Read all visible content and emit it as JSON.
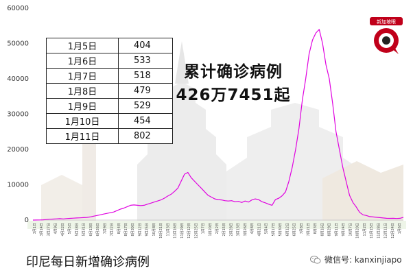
{
  "headline": {
    "line1": "累计确诊病例",
    "line2": "426万7451起"
  },
  "caption": "印尼每日新增确诊病例",
  "wechat": {
    "label": "微信号: kanxinjiapo",
    "icon": "wechat-icon"
  },
  "logo": {
    "text": "新加坡眼",
    "icon": "camera-eye-logo-icon"
  },
  "table": {
    "rows": [
      {
        "date": "1月5日",
        "value": "404"
      },
      {
        "date": "1月6日",
        "value": "533"
      },
      {
        "date": "1月7日",
        "value": "518"
      },
      {
        "date": "1月8日",
        "value": "479"
      },
      {
        "date": "1月9日",
        "value": "529"
      },
      {
        "date": "1月10日",
        "value": "454"
      },
      {
        "date": "1月11日",
        "value": "802"
      }
    ]
  },
  "colors": {
    "line": "#e000e0",
    "axis": "#cccccc",
    "background_art": "#e8e8e8"
  },
  "chart_data": {
    "type": "line",
    "title": "",
    "xlabel": "",
    "ylabel": "",
    "ylim": [
      0,
      60000
    ],
    "yticks": [
      0,
      10000,
      20000,
      30000,
      40000,
      50000,
      60000
    ],
    "grid": false,
    "x_tick_labels": [
      "3月1日",
      "3月14日",
      "3月27日",
      "4月9日",
      "4月22日",
      "5月5日",
      "5月18日",
      "5月31日",
      "6月13日",
      "6月26日",
      "7月9日",
      "7月22日",
      "8月4日",
      "8月17日",
      "8月30日",
      "9月12日",
      "9月25日",
      "10月8日",
      "10月21日",
      "11月3日",
      "11月16日",
      "11月29日",
      "12月12日",
      "12月25日",
      "1月7日",
      "1月20日",
      "2月2日",
      "2月15日",
      "2月28日",
      "3月13日",
      "3月26日",
      "4月8日",
      "4月21日",
      "5月4日",
      "5月17日",
      "5月30日",
      "6月12日",
      "6月25日",
      "7月8日",
      "7月21日",
      "8月3日",
      "8月16日",
      "8月29日",
      "9月11日",
      "9月24日",
      "10月7日",
      "10月20日",
      "11月2日",
      "11月15日",
      "11月28日",
      "12月11日",
      "12月24日",
      "1月6日"
    ],
    "series": [
      {
        "values": [
          0,
          10,
          30,
          80,
          150,
          250,
          300,
          350,
          400,
          330,
          420,
          480,
          550,
          600,
          650,
          700,
          750,
          900,
          1100,
          1300,
          1500,
          1700,
          1900,
          2100,
          2300,
          2700,
          3100,
          3400,
          3800,
          4200,
          4300,
          4200,
          4100,
          4200,
          4500,
          4800,
          5100,
          5400,
          5700,
          6200,
          6800,
          7300,
          8100,
          9000,
          11000,
          13000,
          13500,
          12000,
          11000,
          10000,
          9000,
          8000,
          7000,
          6500,
          6000,
          5800,
          5700,
          5500,
          5400,
          5500,
          5200,
          5300,
          5000,
          5400,
          5100,
          5700,
          6000,
          5800,
          5200,
          4900,
          4500,
          4200,
          5800,
          6200,
          6900,
          8000,
          11000,
          15000,
          20000,
          26000,
          34000,
          40000,
          47000,
          51000,
          53000,
          54000,
          50000,
          44000,
          40000,
          33000,
          25000,
          20000,
          15000,
          11000,
          7000,
          5000,
          3700,
          2200,
          1500,
          1300,
          1000,
          900,
          800,
          700,
          600,
          500,
          480,
          500,
          450,
          500,
          800
        ]
      }
    ]
  }
}
